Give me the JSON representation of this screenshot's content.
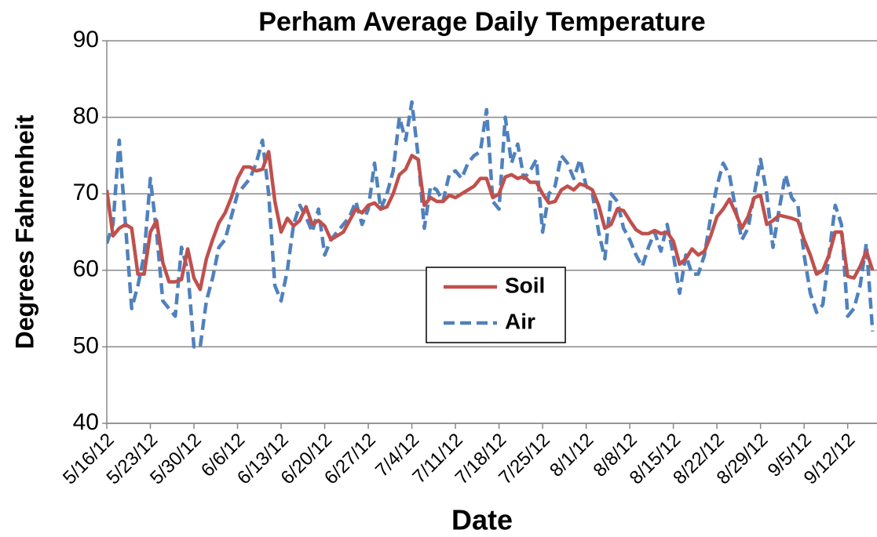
{
  "chart_data": {
    "type": "line",
    "title": "Perham Average Daily Temperature",
    "xlabel": "Date",
    "ylabel": "Degrees Fahrenheit",
    "categories": [
      "5/16/12",
      null,
      null,
      null,
      null,
      null,
      null,
      "5/23/12",
      null,
      null,
      null,
      null,
      null,
      null,
      "5/30/12",
      null,
      null,
      null,
      null,
      null,
      null,
      "6/6/12",
      null,
      null,
      null,
      null,
      null,
      null,
      "6/13/12",
      null,
      null,
      null,
      null,
      null,
      null,
      "6/20/12",
      null,
      null,
      null,
      null,
      null,
      null,
      "6/27/12",
      null,
      null,
      null,
      null,
      null,
      null,
      "7/4/12",
      null,
      null,
      null,
      null,
      null,
      null,
      "7/11/12",
      null,
      null,
      null,
      null,
      null,
      null,
      "7/18/12",
      null,
      null,
      null,
      null,
      null,
      null,
      "7/25/12",
      null,
      null,
      null,
      null,
      null,
      null,
      "8/1/12",
      null,
      null,
      null,
      null,
      null,
      null,
      "8/8/12",
      null,
      null,
      null,
      null,
      null,
      null,
      "8/15/12",
      null,
      null,
      null,
      null,
      null,
      null,
      "8/22/12",
      null,
      null,
      null,
      null,
      null,
      null,
      "8/29/12",
      null,
      null,
      null,
      null,
      null,
      null,
      "9/5/12",
      null,
      null,
      null,
      null,
      null,
      null,
      "9/12/12",
      null,
      null,
      null,
      null
    ],
    "series": [
      {
        "name": "Soil",
        "color": "#c0504d",
        "dash": false,
        "values": [
          70.5,
          64.5,
          65.5,
          66,
          65.5,
          59.5,
          59.5,
          65,
          66.5,
          61,
          58.5,
          58.5,
          58.8,
          62.8,
          59,
          57.5,
          61.5,
          64,
          66.2,
          67.5,
          69.5,
          72,
          73.5,
          73.5,
          73,
          73.2,
          75.5,
          69,
          65,
          66.8,
          65.8,
          66.5,
          68.3,
          66,
          66.5,
          65.8,
          64,
          64.5,
          65,
          66.5,
          68,
          67.5,
          68.5,
          68.8,
          68,
          68.3,
          70,
          72.5,
          73.2,
          75,
          74.5,
          68.5,
          69.5,
          69,
          69,
          69.8,
          69.5,
          70,
          70.5,
          71,
          72,
          72,
          69.5,
          70,
          72.2,
          72.5,
          72,
          72.3,
          71.5,
          71.5,
          70,
          68.8,
          69,
          70.5,
          71,
          70.5,
          71.3,
          71,
          70.5,
          68.5,
          65.5,
          66,
          68,
          67.8,
          66.5,
          65.3,
          64.8,
          64.8,
          65.2,
          64.8,
          65,
          63.8,
          60.8,
          61.5,
          62.8,
          62,
          62.5,
          64.5,
          67,
          68,
          69.3,
          67.5,
          65.5,
          67,
          69.5,
          69.8,
          66,
          66.5,
          67.2,
          67,
          66.8,
          66.5,
          64,
          62,
          59.5,
          60,
          62,
          65,
          65,
          59.2,
          59,
          60.5,
          62.5,
          60
        ]
      },
      {
        "name": "Air",
        "color": "#4f81bd",
        "dash": true,
        "values": [
          63.5,
          66,
          77,
          66,
          55,
          58,
          62,
          72,
          65,
          56,
          55,
          54,
          63,
          60,
          50,
          50,
          56,
          59,
          63,
          64,
          67,
          70,
          71,
          72,
          74,
          77,
          70,
          58,
          56,
          60,
          66,
          68.5,
          67,
          65,
          68,
          62,
          64,
          65,
          66,
          67,
          69,
          66,
          68,
          74,
          68,
          70,
          73,
          80,
          77,
          82,
          75,
          65.5,
          71,
          70.5,
          69,
          72.5,
          73,
          72,
          74,
          75,
          75.5,
          81,
          69,
          68,
          80,
          74,
          76.5,
          72,
          73,
          74.5,
          65,
          70,
          71,
          75,
          74,
          72,
          74.5,
          71,
          70,
          65,
          61.5,
          70,
          69,
          65.5,
          64,
          62,
          60.5,
          63,
          65,
          62.5,
          66,
          62,
          57,
          62,
          59.5,
          59.5,
          62,
          67,
          71,
          74,
          72.5,
          68,
          64,
          65.5,
          70,
          74.5,
          70,
          63,
          68,
          72.5,
          69.5,
          68.5,
          62,
          57,
          54.5,
          55.5,
          62,
          68.5,
          66,
          54,
          55,
          58,
          63.5,
          52
        ]
      }
    ],
    "ylim": [
      40,
      90
    ],
    "yticks": [
      40,
      50,
      60,
      70,
      80,
      90
    ],
    "grid": true,
    "legend": "center"
  }
}
